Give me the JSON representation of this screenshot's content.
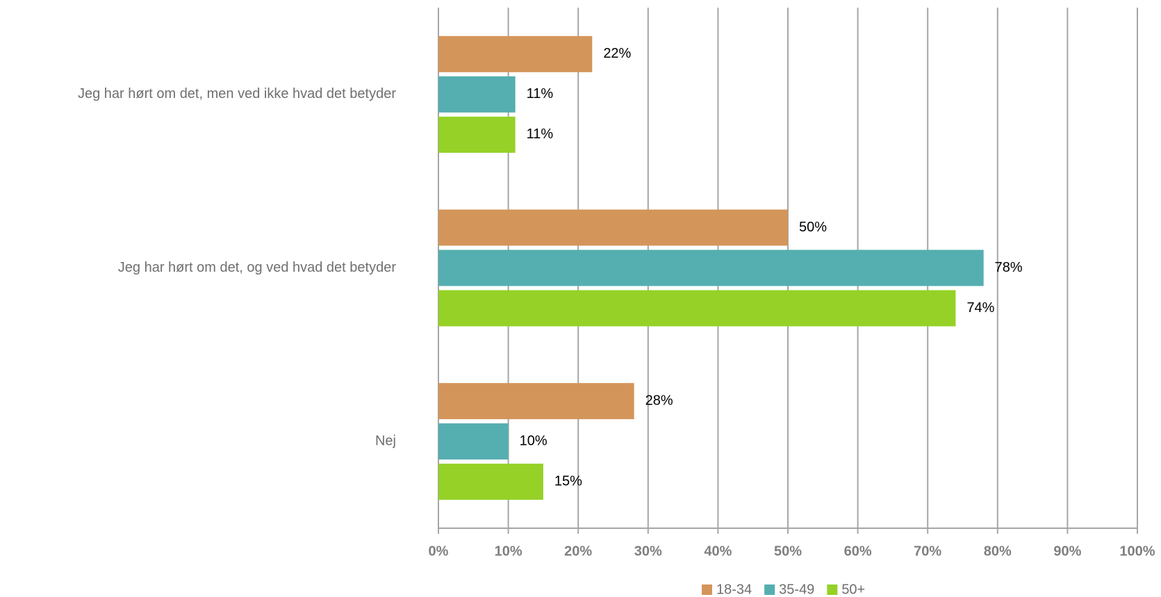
{
  "chart_data": {
    "type": "bar",
    "orientation": "horizontal",
    "categories": [
      "Jeg har hørt om det, men ved ikke hvad det betyder",
      "Jeg har hørt om det, og ved hvad det betyder",
      "Nej"
    ],
    "series": [
      {
        "name": "18-34",
        "color": "#d4955a",
        "values": [
          22,
          50,
          28
        ],
        "value_labels": [
          "22%",
          "50%",
          "28%"
        ]
      },
      {
        "name": "35-49",
        "color": "#55aeb0",
        "values": [
          11,
          78,
          10
        ],
        "value_labels": [
          "11%",
          "78%",
          "10%"
        ]
      },
      {
        "name": "50+",
        "color": "#95d126",
        "values": [
          11,
          74,
          15
        ],
        "value_labels": [
          "11%",
          "74%",
          "15%"
        ]
      }
    ],
    "xlim": [
      0,
      100
    ],
    "xticks": [
      {
        "value": 0,
        "label": "0%"
      },
      {
        "value": 10,
        "label": "10%"
      },
      {
        "value": 20,
        "label": "20%"
      },
      {
        "value": 30,
        "label": "30%"
      },
      {
        "value": 40,
        "label": "40%"
      },
      {
        "value": 50,
        "label": "50%"
      },
      {
        "value": 60,
        "label": "60%"
      },
      {
        "value": 70,
        "label": "70%"
      },
      {
        "value": 80,
        "label": "80%"
      },
      {
        "value": 90,
        "label": "90%"
      },
      {
        "value": 100,
        "label": "100%"
      }
    ],
    "grid": true,
    "legend": "bottom"
  }
}
